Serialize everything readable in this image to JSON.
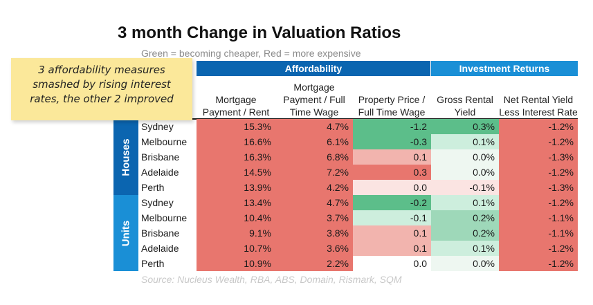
{
  "chart_data": {
    "type": "table",
    "title": "3 month Change in Valuation Ratios",
    "subtitle": "Green = becoming cheaper, Red = more expensive",
    "column_groups": [
      {
        "label": "Affordability",
        "color": "#0b65b0"
      },
      {
        "label": "Investment Returns",
        "color": "#1a8fd6"
      }
    ],
    "columns": [
      "Mortgage Payment / Rent",
      "Mortgage Payment / Full Time Wage",
      "Property Price / Full Time Wage",
      "Gross Rental Yield",
      "Net Rental Yield Less Interest Rate"
    ],
    "sections": [
      {
        "label": "Houses",
        "color": "#0b65b0",
        "rows": [
          {
            "city": "Sydney",
            "values": [
              "15.3%",
              "4.7%",
              "-1.2",
              "0.3%",
              "-1.2%"
            ]
          },
          {
            "city": "Melbourne",
            "values": [
              "16.6%",
              "6.1%",
              "-0.3",
              "0.1%",
              "-1.2%"
            ]
          },
          {
            "city": "Brisbane",
            "values": [
              "16.3%",
              "6.8%",
              "0.1",
              "0.0%",
              "-1.3%"
            ]
          },
          {
            "city": "Adelaide",
            "values": [
              "14.5%",
              "7.2%",
              "0.3",
              "0.0%",
              "-1.2%"
            ]
          },
          {
            "city": "Perth",
            "values": [
              "13.9%",
              "4.2%",
              "0.0",
              "-0.1%",
              "-1.3%"
            ]
          }
        ]
      },
      {
        "label": "Units",
        "color": "#1a8fd6",
        "rows": [
          {
            "city": "Sydney",
            "values": [
              "13.4%",
              "4.7%",
              "-0.2",
              "0.1%",
              "-1.2%"
            ]
          },
          {
            "city": "Melbourne",
            "values": [
              "10.4%",
              "3.7%",
              "-0.1",
              "0.2%",
              "-1.1%"
            ]
          },
          {
            "city": "Brisbane",
            "values": [
              "9.1%",
              "3.8%",
              "0.1",
              "0.2%",
              "-1.1%"
            ]
          },
          {
            "city": "Adelaide",
            "values": [
              "10.7%",
              "3.6%",
              "0.1",
              "0.1%",
              "-1.2%"
            ]
          },
          {
            "city": "Perth",
            "values": [
              "10.9%",
              "2.2%",
              "0.0",
              "0.0%",
              "-1.2%"
            ]
          }
        ]
      }
    ],
    "cell_colors": [
      [
        "#e8766e",
        "#e8766e",
        "#5cbe8a",
        "#5cbe8a",
        "#e8766e"
      ],
      [
        "#e8766e",
        "#e8766e",
        "#5cbe8a",
        "#cdeedd",
        "#e8766e"
      ],
      [
        "#e8766e",
        "#e8766e",
        "#f2b4ae",
        "#eef7f1",
        "#e8766e"
      ],
      [
        "#e8766e",
        "#e8766e",
        "#e8766e",
        "#eef7f1",
        "#e8766e"
      ],
      [
        "#e8766e",
        "#e8766e",
        "#fbe4e2",
        "#fbe4e2",
        "#e8766e"
      ],
      [
        "#e8766e",
        "#e8766e",
        "#5cbe8a",
        "#cdeedd",
        "#e8766e"
      ],
      [
        "#e8766e",
        "#e8766e",
        "#cdeedd",
        "#9ed8b9",
        "#e8766e"
      ],
      [
        "#e8766e",
        "#e8766e",
        "#f2b4ae",
        "#9ed8b9",
        "#e8766e"
      ],
      [
        "#e8766e",
        "#e8766e",
        "#f2b4ae",
        "#cdeedd",
        "#e8766e"
      ],
      [
        "#e8766e",
        "#e8766e",
        "#ffffff",
        "#eef7f1",
        "#e8766e"
      ]
    ],
    "source": "Source: Nucleus Wealth, RBA, ABS, Domain, Rismark, SQM"
  },
  "annotation": {
    "text": "3 affordability measures smashed by rising interest rates, the other 2 improved"
  }
}
